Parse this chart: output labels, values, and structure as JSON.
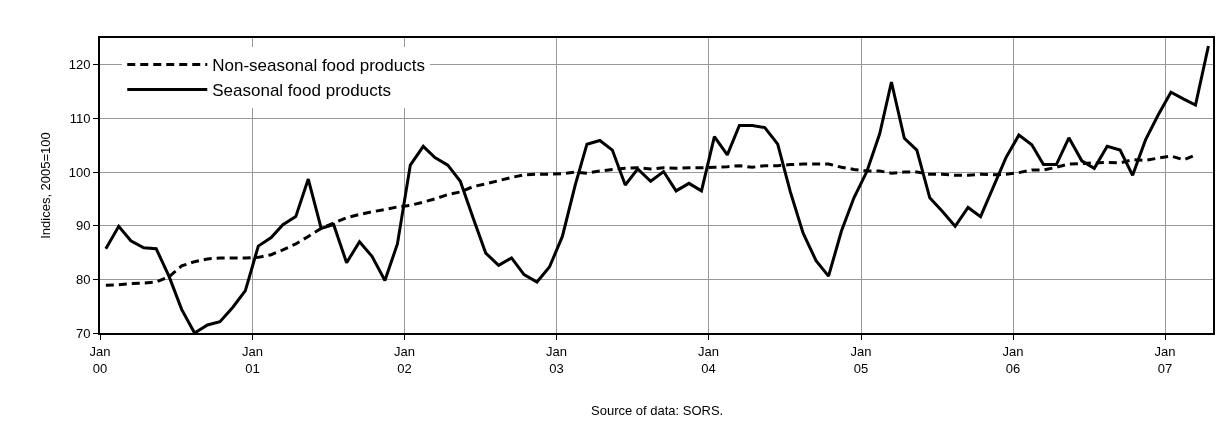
{
  "chart_data": {
    "type": "line",
    "ylabel": "Indices, 2005=100",
    "annotations": [
      "Source of data: SORS."
    ],
    "x": [
      "2000-01-15",
      "2000-02-15",
      "2000-03-15",
      "2000-04-15",
      "2000-05-15",
      "2000-06-15",
      "2000-07-15",
      "2000-08-15",
      "2000-09-15",
      "2000-10-15",
      "2000-11-15",
      "2000-12-15",
      "2001-01-15",
      "2001-02-15",
      "2001-03-15",
      "2001-04-15",
      "2001-05-15",
      "2001-06-15",
      "2001-07-15",
      "2001-08-15",
      "2001-09-15",
      "2001-10-15",
      "2001-11-15",
      "2001-12-15",
      "2002-01-15",
      "2002-02-15",
      "2002-03-15",
      "2002-04-15",
      "2002-05-15",
      "2002-06-15",
      "2002-07-15",
      "2002-08-15",
      "2002-09-15",
      "2002-10-15",
      "2002-11-15",
      "2002-12-15",
      "2003-01-15",
      "2003-02-15",
      "2003-03-15",
      "2003-04-15",
      "2003-05-15",
      "2003-06-15",
      "2003-07-15",
      "2003-08-15",
      "2003-09-15",
      "2003-10-15",
      "2003-11-15",
      "2003-12-15",
      "2004-01-15",
      "2004-02-15",
      "2004-03-15",
      "2004-04-15",
      "2004-05-15",
      "2004-06-15",
      "2004-07-15",
      "2004-08-15",
      "2004-09-15",
      "2004-10-15",
      "2004-11-15",
      "2004-12-15",
      "2005-01-15",
      "2005-02-15",
      "2005-03-15",
      "2005-04-15",
      "2005-05-15",
      "2005-06-15",
      "2005-07-15",
      "2005-08-15",
      "2005-09-15",
      "2005-10-15",
      "2005-11-15",
      "2005-12-15",
      "2006-01-15",
      "2006-02-15",
      "2006-03-15",
      "2006-04-15",
      "2006-05-15",
      "2006-06-15",
      "2006-07-15",
      "2006-08-15",
      "2006-09-15",
      "2006-10-15",
      "2006-11-15",
      "2006-12-15",
      "2007-01-15",
      "2007-02-15",
      "2007-03-15",
      "2007-04-15"
    ],
    "series": [
      {
        "name": "Non-seasonal food products",
        "color": "#000000",
        "line_style": "dashed",
        "values": [
          78.9,
          79.0,
          79.2,
          79.3,
          79.5,
          80.5,
          82.5,
          83.3,
          83.8,
          84.0,
          84.0,
          84.0,
          84.1,
          84.6,
          85.5,
          86.6,
          88.0,
          89.5,
          90.5,
          91.5,
          92.1,
          92.6,
          93.0,
          93.5,
          93.8,
          94.4,
          95.0,
          95.8,
          96.3,
          97.3,
          97.8,
          98.4,
          99.0,
          99.5,
          99.6,
          99.6,
          99.7,
          100.0,
          99.8,
          100.2,
          100.5,
          100.7,
          100.8,
          100.6,
          100.8,
          100.7,
          100.8,
          100.8,
          100.9,
          101.0,
          101.2,
          100.9,
          101.2,
          101.2,
          101.4,
          101.5,
          101.5,
          101.5,
          100.9,
          100.5,
          100.2,
          100.2,
          99.8,
          100.0,
          100.0,
          99.6,
          99.6,
          99.4,
          99.4,
          99.6,
          99.5,
          99.6,
          99.9,
          100.4,
          100.4,
          100.9,
          101.5,
          101.6,
          101.7,
          101.8,
          101.7,
          102.3,
          102.2,
          102.6,
          103.0,
          102.3,
          103.2,
          null
        ]
      },
      {
        "name": "Seasonal food products",
        "color": "#000000",
        "line_style": "solid",
        "values": [
          85.7,
          89.9,
          87.2,
          85.9,
          85.7,
          80.5,
          74.4,
          70.0,
          71.5,
          72.1,
          74.8,
          77.9,
          86.2,
          87.8,
          90.2,
          91.7,
          98.7,
          89.5,
          90.2,
          83.1,
          87.0,
          84.3,
          79.8,
          86.6,
          101.3,
          104.8,
          102.7,
          101.3,
          98.3,
          91.4,
          84.9,
          82.6,
          84.0,
          80.9,
          79.5,
          82.3,
          88.0,
          97.6,
          105.2,
          105.9,
          104.1,
          97.6,
          100.6,
          98.3,
          100.1,
          96.5,
          97.9,
          96.5,
          106.6,
          103.2,
          108.7,
          108.7,
          108.3,
          105.2,
          96.4,
          88.6,
          83.5,
          80.6,
          89.0,
          95.2,
          100.1,
          107.2,
          116.8,
          106.3,
          104.1,
          95.2,
          92.7,
          89.9,
          93.4,
          91.7,
          97.3,
          102.7,
          106.9,
          105.1,
          101.4,
          101.4,
          106.4,
          102.1,
          100.7,
          104.8,
          104.1,
          99.4,
          106.0,
          110.6,
          114.9,
          113.6,
          112.5,
          123.5
        ]
      }
    ],
    "xlim": [
      "2000-01-01",
      "2007-04-26"
    ],
    "xticks": [
      {
        "value": "2000-01-01",
        "label": "Jan\n00"
      },
      {
        "value": "2001-01-01",
        "label": "Jan\n01"
      },
      {
        "value": "2002-01-01",
        "label": "Jan\n02"
      },
      {
        "value": "2003-01-01",
        "label": "Jan\n03"
      },
      {
        "value": "2004-01-01",
        "label": "Jan\n04"
      },
      {
        "value": "2005-01-01",
        "label": "Jan\n05"
      },
      {
        "value": "2006-01-01",
        "label": "Jan\n06"
      },
      {
        "value": "2007-01-01",
        "label": "Jan\n07"
      }
    ],
    "ylim": [
      70,
      125
    ],
    "yticks": [
      70,
      80,
      90,
      100,
      110,
      120
    ],
    "grid": true,
    "legend": "top left",
    "marker": "none"
  }
}
